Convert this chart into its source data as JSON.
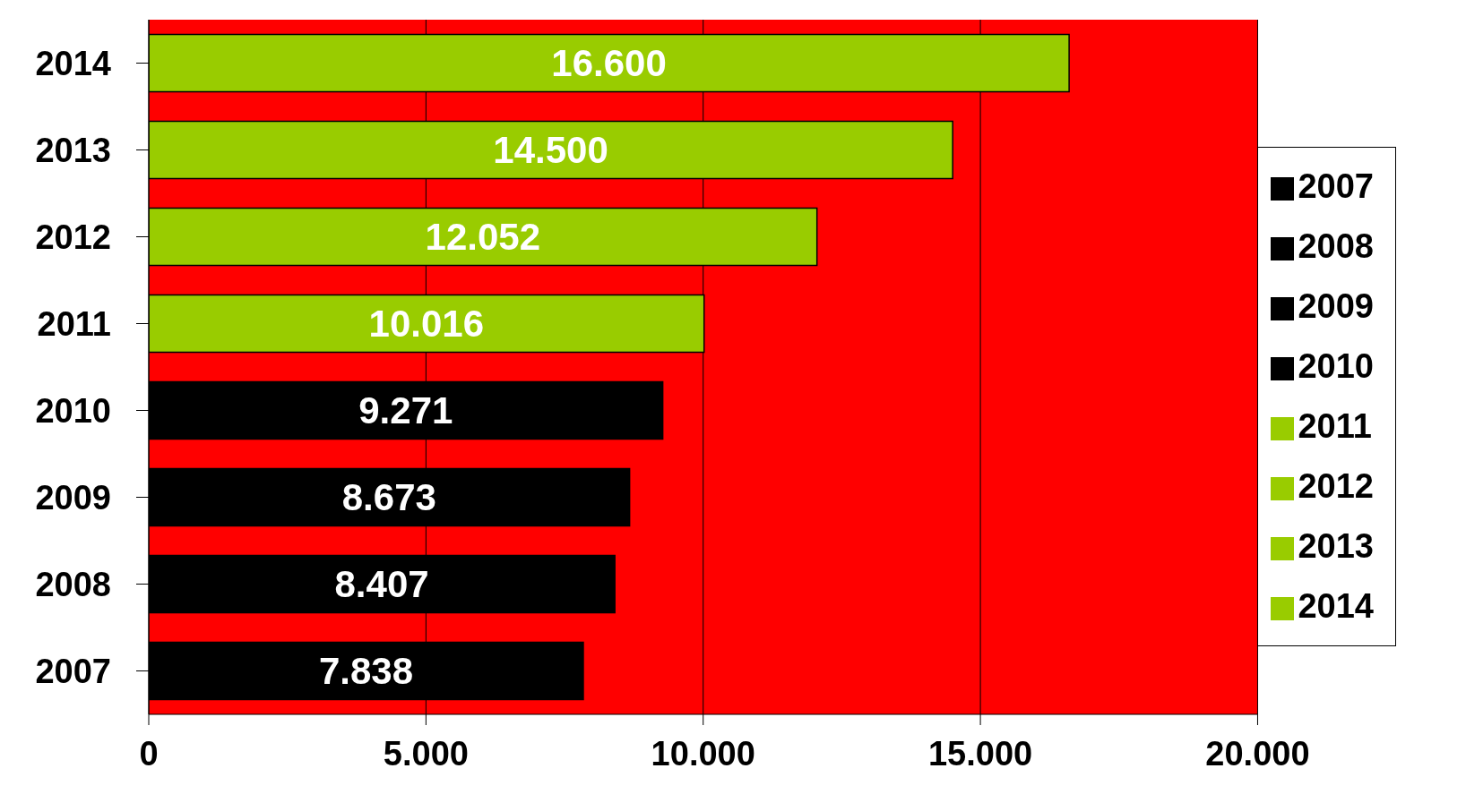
{
  "chart_data": {
    "type": "bar",
    "orientation": "horizontal",
    "stacked": true,
    "categories": [
      "2014",
      "2013",
      "2012",
      "2011",
      "2010",
      "2009",
      "2008",
      "2007"
    ],
    "series": [
      {
        "name": "2007",
        "color": "#000000",
        "values": [
          null,
          null,
          null,
          null,
          null,
          null,
          null,
          7838
        ],
        "value_labels": [
          null,
          null,
          null,
          null,
          null,
          null,
          null,
          "7.838"
        ]
      },
      {
        "name": "2008",
        "color": "#000000",
        "values": [
          null,
          null,
          null,
          null,
          null,
          null,
          8407,
          null
        ],
        "value_labels": [
          null,
          null,
          null,
          null,
          null,
          null,
          "8.407",
          null
        ]
      },
      {
        "name": "2009",
        "color": "#000000",
        "values": [
          null,
          null,
          null,
          null,
          null,
          8673,
          null,
          null
        ],
        "value_labels": [
          null,
          null,
          null,
          null,
          null,
          "8.673",
          null,
          null
        ]
      },
      {
        "name": "2010",
        "color": "#000000",
        "values": [
          null,
          null,
          null,
          null,
          9271,
          null,
          null,
          null
        ],
        "value_labels": [
          null,
          null,
          null,
          null,
          "9.271",
          null,
          null,
          null
        ]
      },
      {
        "name": "2011",
        "color": "#99cc00",
        "values": [
          null,
          null,
          null,
          10016,
          null,
          null,
          null,
          null
        ],
        "value_labels": [
          null,
          null,
          null,
          "10.016",
          null,
          null,
          null,
          null
        ]
      },
      {
        "name": "2012",
        "color": "#99cc00",
        "values": [
          null,
          null,
          12052,
          null,
          null,
          null,
          null,
          null
        ],
        "value_labels": [
          null,
          null,
          "12.052",
          null,
          null,
          null,
          null,
          null
        ]
      },
      {
        "name": "2013",
        "color": "#99cc00",
        "values": [
          null,
          14500,
          null,
          null,
          null,
          null,
          null,
          null
        ],
        "value_labels": [
          null,
          "14.500",
          null,
          null,
          null,
          null,
          null,
          null
        ]
      },
      {
        "name": "2014",
        "color": "#99cc00",
        "values": [
          16600,
          null,
          null,
          null,
          null,
          null,
          null,
          null
        ],
        "value_labels": [
          "16.600",
          null,
          null,
          null,
          null,
          null,
          null,
          null
        ]
      }
    ],
    "xlim": [
      0,
      20000
    ],
    "xticks": [
      0,
      {
        "value": 5000,
        "label": "5.000"
      },
      {
        "value": 10000,
        "label": "10.000"
      },
      {
        "value": 15000,
        "label": "15.000"
      },
      {
        "value": 20000,
        "label": "20.000"
      }
    ],
    "grid": "x",
    "legend": "right"
  }
}
